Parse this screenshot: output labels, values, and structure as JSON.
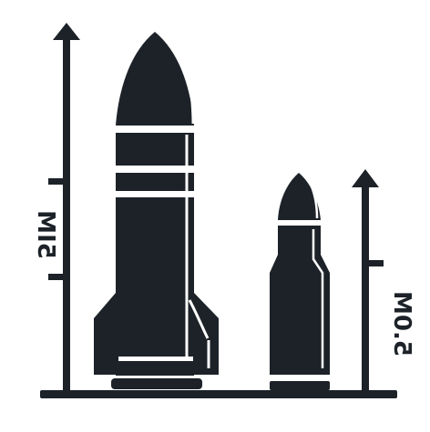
{
  "colors": {
    "ink": "#1c2228",
    "paper": "#ffffff"
  },
  "icons": {
    "large": "rocket-icon",
    "small": "bullet-icon"
  },
  "labels": {
    "left_scale": "5IM",
    "right_scale": "5.0M"
  }
}
